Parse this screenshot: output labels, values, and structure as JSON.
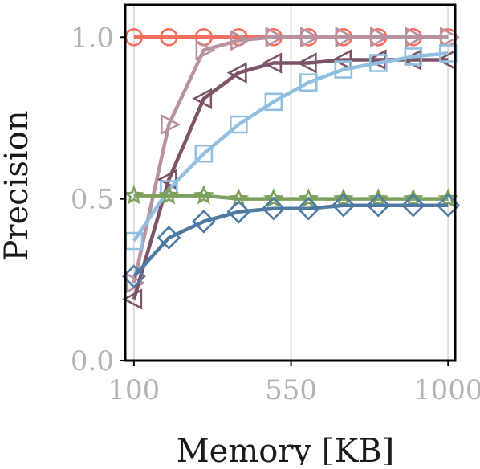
{
  "chart_data": {
    "type": "line",
    "title": "",
    "xlabel": "Memory [KB]",
    "ylabel": "Precision",
    "xlim": [
      75,
      1020
    ],
    "ylim": [
      0,
      1.1
    ],
    "xticks": [
      100,
      550,
      1000
    ],
    "xtick_labels": [
      "100",
      "550",
      "1000"
    ],
    "yticks": [
      0.0,
      0.5,
      1.0
    ],
    "ytick_labels": [
      "0.0",
      "0.5",
      "1.0"
    ],
    "grid": "x-only",
    "legend": "none",
    "x": [
      100,
      200,
      300,
      400,
      500,
      600,
      700,
      800,
      900,
      1000
    ],
    "series": [
      {
        "color": "#f46d5d",
        "marker": "circle",
        "values": [
          1.0,
          1.0,
          1.0,
          1.0,
          1.0,
          1.0,
          1.0,
          1.0,
          1.0,
          1.0
        ]
      },
      {
        "color": "#b793a2",
        "marker": "triangle-right",
        "values": [
          0.24,
          0.73,
          0.96,
          0.99,
          1.0,
          1.0,
          1.0,
          1.0,
          1.0,
          1.0
        ]
      },
      {
        "color": "#7b5468",
        "marker": "triangle-left",
        "values": [
          0.19,
          0.56,
          0.81,
          0.89,
          0.92,
          0.92,
          0.93,
          0.93,
          0.93,
          0.93
        ]
      },
      {
        "color": "#92bfe0",
        "marker": "square",
        "values": [
          0.37,
          0.53,
          0.64,
          0.73,
          0.8,
          0.86,
          0.9,
          0.92,
          0.94,
          0.95
        ]
      },
      {
        "color": "#7da05d",
        "marker": "star",
        "values": [
          0.51,
          0.51,
          0.51,
          0.5,
          0.5,
          0.5,
          0.5,
          0.5,
          0.5,
          0.5
        ]
      },
      {
        "color": "#4f7ba3",
        "marker": "diamond",
        "values": [
          0.26,
          0.38,
          0.43,
          0.46,
          0.47,
          0.47,
          0.48,
          0.48,
          0.48,
          0.48
        ]
      }
    ]
  }
}
